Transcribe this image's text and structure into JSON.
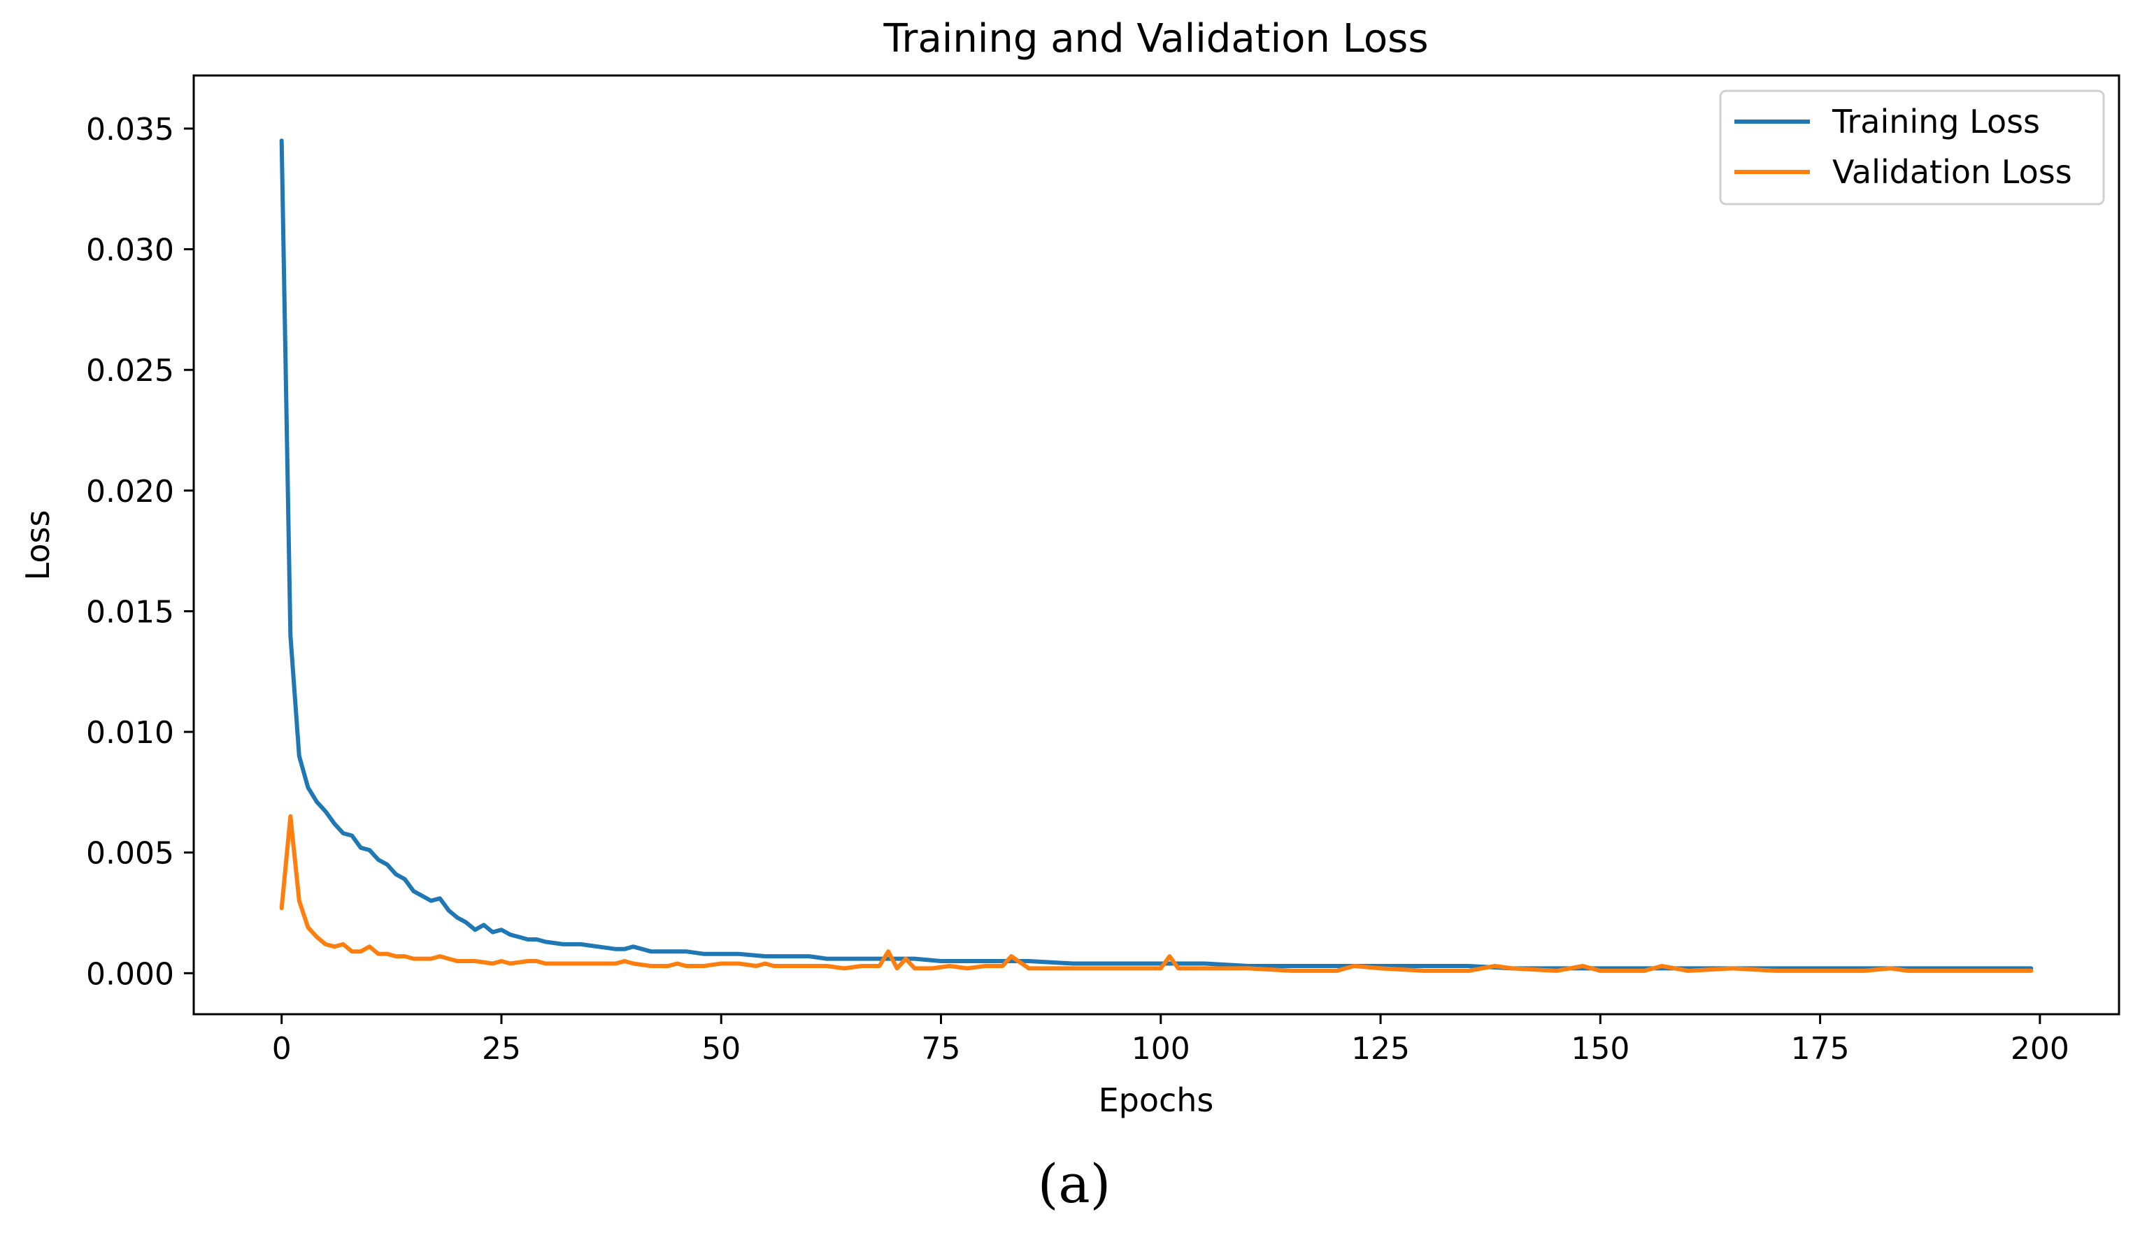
{
  "chart_data": {
    "type": "line",
    "title": "Training and Validation Loss",
    "xlabel": "Epochs",
    "ylabel": "Loss",
    "xlim": [
      -10,
      209
    ],
    "ylim": [
      -0.0017,
      0.0372
    ],
    "xticks": [
      0,
      25,
      50,
      75,
      100,
      125,
      150,
      175,
      200
    ],
    "xtick_labels": [
      "0",
      "25",
      "50",
      "75",
      "100",
      "125",
      "150",
      "175",
      "200"
    ],
    "yticks": [
      0,
      0.005,
      0.01,
      0.015,
      0.02,
      0.025,
      0.03,
      0.035
    ],
    "ytick_labels": [
      "0.000",
      "0.005",
      "0.010",
      "0.015",
      "0.020",
      "0.025",
      "0.030",
      "0.035"
    ],
    "grid": false,
    "legend_position": "top-right",
    "series": [
      {
        "name": "Training Loss",
        "color": "#1f77b4",
        "x": [
          0,
          1,
          2,
          3,
          4,
          5,
          6,
          7,
          8,
          9,
          10,
          11,
          12,
          13,
          14,
          15,
          16,
          17,
          18,
          19,
          20,
          21,
          22,
          23,
          24,
          25,
          26,
          27,
          28,
          29,
          30,
          32,
          34,
          36,
          38,
          39,
          40,
          42,
          44,
          46,
          48,
          50,
          52,
          55,
          58,
          60,
          62,
          65,
          68,
          70,
          72,
          75,
          78,
          80,
          85,
          90,
          95,
          100,
          105,
          110,
          115,
          120,
          125,
          130,
          135,
          140,
          145,
          150,
          155,
          160,
          165,
          170,
          175,
          180,
          185,
          190,
          195,
          199
        ],
        "values": [
          0.0345,
          0.014,
          0.009,
          0.0077,
          0.0071,
          0.0067,
          0.0062,
          0.0058,
          0.0057,
          0.0052,
          0.0051,
          0.0047,
          0.0045,
          0.0041,
          0.0039,
          0.0034,
          0.0032,
          0.003,
          0.0031,
          0.0026,
          0.0023,
          0.0021,
          0.0018,
          0.002,
          0.0017,
          0.0018,
          0.0016,
          0.0015,
          0.0014,
          0.0014,
          0.0013,
          0.0012,
          0.0012,
          0.0011,
          0.001,
          0.001,
          0.0011,
          0.0009,
          0.0009,
          0.0009,
          0.0008,
          0.0008,
          0.0008,
          0.0007,
          0.0007,
          0.0007,
          0.0006,
          0.0006,
          0.0006,
          0.0006,
          0.0006,
          0.0005,
          0.0005,
          0.0005,
          0.0005,
          0.0004,
          0.0004,
          0.0004,
          0.0004,
          0.0003,
          0.0003,
          0.0003,
          0.0003,
          0.0003,
          0.0003,
          0.0002,
          0.0002,
          0.0002,
          0.0002,
          0.0002,
          0.0002,
          0.0002,
          0.0002,
          0.0002,
          0.0002,
          0.0002,
          0.0002,
          0.0002
        ]
      },
      {
        "name": "Validation Loss",
        "color": "#ff7f0e",
        "x": [
          0,
          1,
          2,
          3,
          4,
          5,
          6,
          7,
          8,
          9,
          10,
          11,
          12,
          13,
          14,
          15,
          16,
          17,
          18,
          19,
          20,
          22,
          24,
          25,
          26,
          28,
          29,
          30,
          32,
          34,
          36,
          38,
          39,
          40,
          42,
          44,
          45,
          46,
          48,
          50,
          52,
          54,
          55,
          56,
          58,
          60,
          62,
          64,
          66,
          68,
          69,
          70,
          71,
          72,
          74,
          76,
          78,
          80,
          82,
          83,
          85,
          88,
          90,
          95,
          100,
          101,
          102,
          105,
          110,
          115,
          120,
          122,
          125,
          130,
          135,
          138,
          140,
          145,
          148,
          150,
          155,
          157,
          160,
          165,
          170,
          175,
          180,
          183,
          185,
          190,
          195,
          199
        ],
        "values": [
          0.0027,
          0.0065,
          0.003,
          0.0019,
          0.0015,
          0.0012,
          0.0011,
          0.0012,
          0.0009,
          0.0009,
          0.0011,
          0.0008,
          0.0008,
          0.0007,
          0.0007,
          0.0006,
          0.0006,
          0.0006,
          0.0007,
          0.0006,
          0.0005,
          0.0005,
          0.0004,
          0.0005,
          0.0004,
          0.0005,
          0.0005,
          0.0004,
          0.0004,
          0.0004,
          0.0004,
          0.0004,
          0.0005,
          0.0004,
          0.0003,
          0.0003,
          0.0004,
          0.0003,
          0.0003,
          0.0004,
          0.0004,
          0.0003,
          0.0004,
          0.0003,
          0.0003,
          0.0003,
          0.0003,
          0.0002,
          0.0003,
          0.0003,
          0.0009,
          0.0002,
          0.0006,
          0.0002,
          0.0002,
          0.0003,
          0.0002,
          0.0003,
          0.0003,
          0.0007,
          0.0002,
          0.0002,
          0.0002,
          0.0002,
          0.0002,
          0.0007,
          0.0002,
          0.0002,
          0.0002,
          0.0001,
          0.0001,
          0.0003,
          0.0002,
          0.0001,
          0.0001,
          0.0003,
          0.0002,
          0.0001,
          0.0003,
          0.0001,
          0.0001,
          0.0003,
          0.0001,
          0.0002,
          0.0001,
          0.0001,
          0.0001,
          0.0002,
          0.0001,
          0.0001,
          0.0001,
          0.0001
        ]
      }
    ]
  },
  "caption": "(a)"
}
